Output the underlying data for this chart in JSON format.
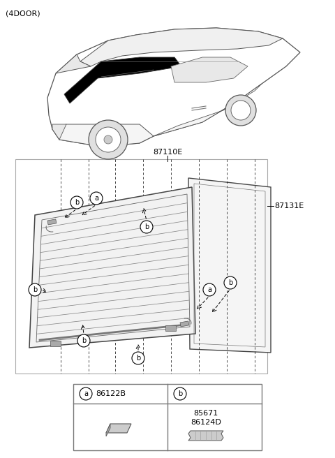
{
  "title": "(4DOOR)",
  "bg_color": "#ffffff",
  "fig_width": 4.8,
  "fig_height": 6.56,
  "dpi": 100,
  "label_87110E": "87110E",
  "label_87131E": "87131E",
  "label_a": "a",
  "label_b": "b",
  "legend_a_code": "86122B",
  "legend_b_code1": "85671",
  "legend_b_code2": "86124D"
}
